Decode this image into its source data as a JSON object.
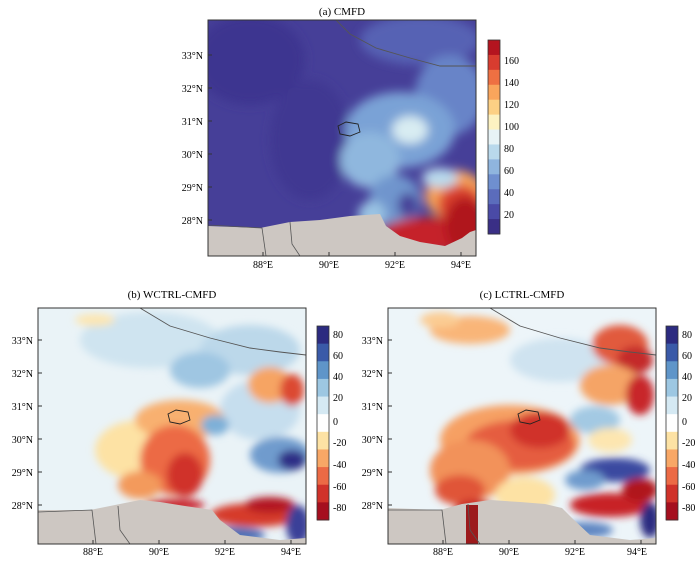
{
  "panels": [
    {
      "id": "a",
      "title": "(a) CMFD",
      "lat_labels": [
        "33°N",
        "32°N",
        "31°N",
        "30°N",
        "29°N",
        "28°N"
      ],
      "lon_labels": [
        "88°E",
        "90°E",
        "92°E",
        "94°E"
      ],
      "colorbar": {
        "ticks": [
          "160",
          "140",
          "120",
          "100",
          "80",
          "60",
          "40",
          "20"
        ],
        "colors": [
          "#3a2f86",
          "#4a4aa6",
          "#5b6cbc",
          "#6f8fcf",
          "#8fb5de",
          "#b9d9ec",
          "#e7f3f6",
          "#fdf2c2",
          "#fdd084",
          "#f9a55c",
          "#ee7042",
          "#d83c2f",
          "#b4141f"
        ]
      }
    },
    {
      "id": "b",
      "title": "(b) WCTRL-CMFD",
      "lat_labels": [
        "33°N",
        "32°N",
        "31°N",
        "30°N",
        "29°N",
        "28°N"
      ],
      "lon_labels": [
        "88°E",
        "90°E",
        "92°E",
        "94°E"
      ],
      "colorbar": {
        "ticks": [
          "80",
          "60",
          "40",
          "20",
          "0",
          "-20",
          "-40",
          "-60",
          "-80"
        ],
        "colors": [
          "#a50f1f",
          "#d0322a",
          "#ec6a45",
          "#f8a766",
          "#fde2a4",
          "#ffffff",
          "#d5e9f3",
          "#9dc7e2",
          "#5f95c9",
          "#3a5aa8",
          "#2c2b80"
        ]
      }
    },
    {
      "id": "c",
      "title": "(c) LCTRL-CMFD",
      "lat_labels": [
        "33°N",
        "32°N",
        "31°N",
        "30°N",
        "29°N",
        "28°N"
      ],
      "lon_labels": [
        "88°E",
        "90°E",
        "92°E",
        "94°E"
      ],
      "colorbar": {
        "ticks": [
          "80",
          "60",
          "40",
          "20",
          "0",
          "-20",
          "-40",
          "-60",
          "-80"
        ],
        "colors": [
          "#a50f1f",
          "#d0322a",
          "#ec6a45",
          "#f8a766",
          "#fde2a4",
          "#ffffff",
          "#d5e9f3",
          "#9dc7e2",
          "#5f95c9",
          "#3a5aa8",
          "#2c2b80"
        ]
      }
    }
  ],
  "colors": {
    "land_mask": "#cdc7c2",
    "border": "#555555",
    "frame": "#333333"
  }
}
